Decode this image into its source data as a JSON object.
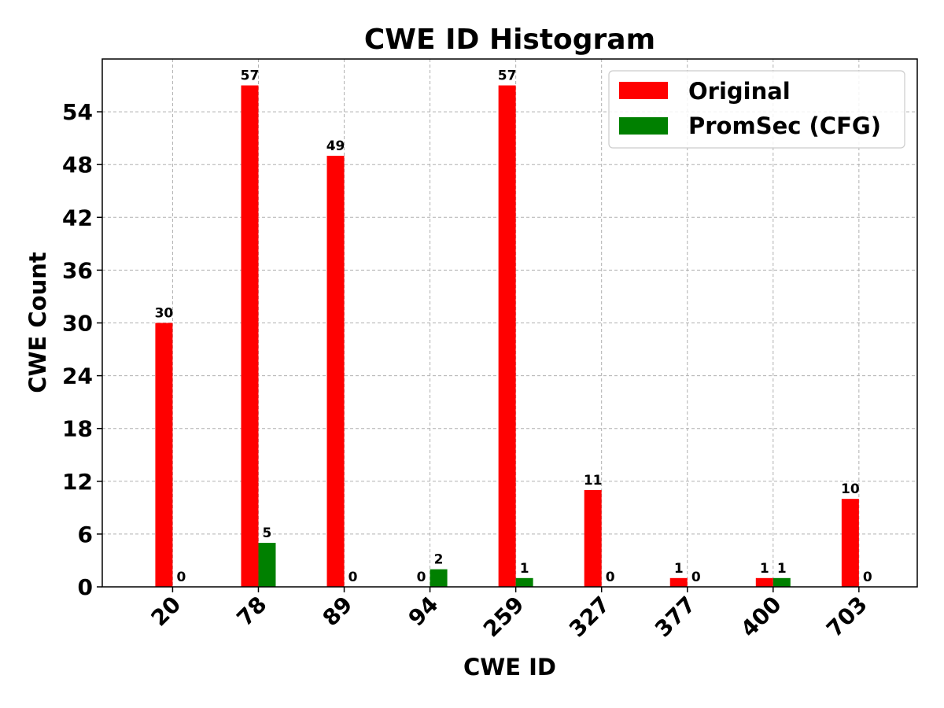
{
  "chart_data": {
    "type": "bar",
    "title": "CWE ID Histogram",
    "xlabel": "CWE ID",
    "ylabel": "CWE Count",
    "categories": [
      "20",
      "78",
      "89",
      "94",
      "259",
      "327",
      "377",
      "400",
      "703"
    ],
    "series": [
      {
        "name": "Original",
        "color": "#ff0000",
        "values": [
          30,
          57,
          49,
          0,
          57,
          11,
          1,
          1,
          10
        ]
      },
      {
        "name": "PromSec (CFG)",
        "color": "#008000",
        "values": [
          0,
          5,
          0,
          2,
          1,
          0,
          0,
          1,
          0
        ]
      }
    ],
    "yticks": [
      0,
      6,
      12,
      18,
      24,
      30,
      36,
      42,
      48,
      54
    ],
    "ylim": [
      0,
      60
    ],
    "grid": true,
    "legend_position": "top-right"
  }
}
